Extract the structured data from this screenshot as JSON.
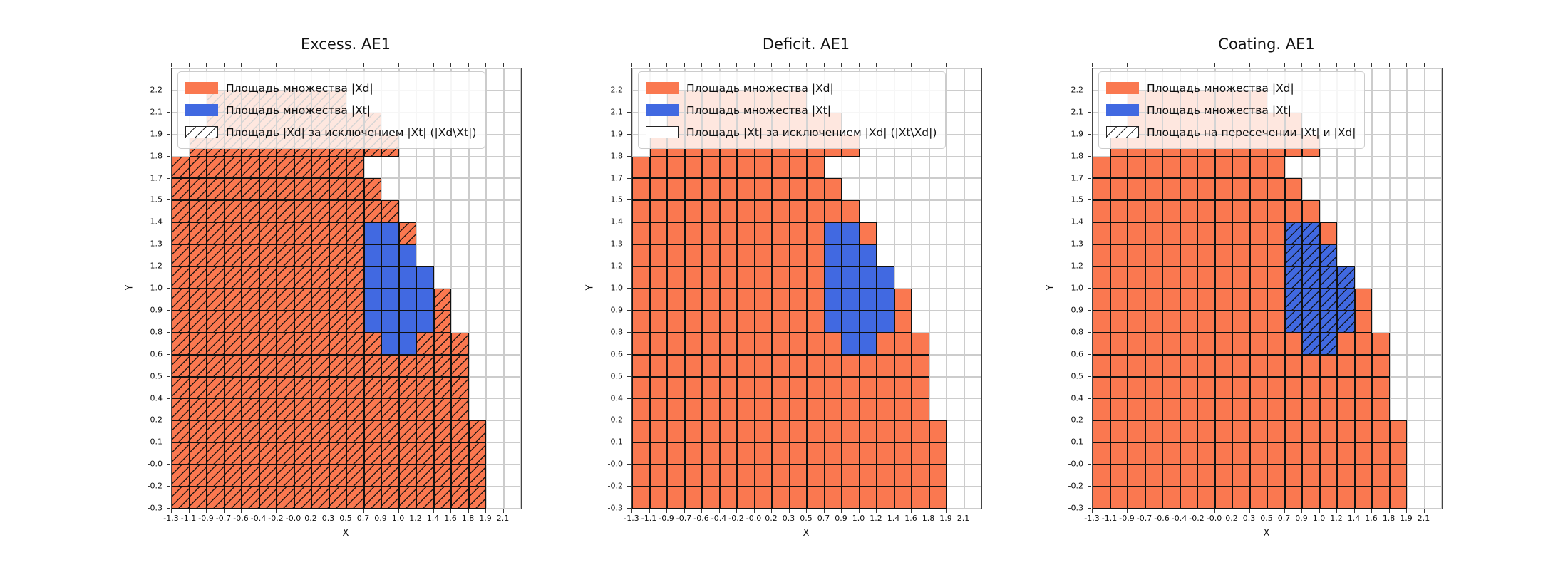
{
  "figure": {
    "background": "#ffffff"
  },
  "colors": {
    "orange": "#fa7850",
    "blue": "#4169e1",
    "grid_minor": "#cccccc",
    "cell_edge": "#111111",
    "spine": "#444444"
  },
  "chart_data": {
    "type": "heatmap",
    "shared": {
      "xlabel": "X",
      "ylabel": "Y",
      "x_ticks": [
        "-1.3",
        "-1.1",
        "-0.9",
        "-0.7",
        "-0.6",
        "-0.4",
        "-0.2",
        "-0.0",
        "0.2",
        "0.3",
        "0.5",
        "0.7",
        "0.9",
        "1.0",
        "1.2",
        "1.4",
        "1.6",
        "1.8",
        "1.9",
        "2.1"
      ],
      "y_ticks_top_to_bottom": [
        "2.2",
        "2.1",
        "1.9",
        "1.8",
        "1.7",
        "1.5",
        "1.4",
        "1.3",
        "1.2",
        "1.0",
        "0.9",
        "0.8",
        "0.6",
        "0.5",
        "0.4",
        "0.2",
        "0.1",
        "-0.0",
        "-0.2",
        "-0.3"
      ],
      "grid_legend_note": "rows are top-to-bottom, 20 chars: . empty, o orange |Xd|, b blue |Xt|",
      "grid_rows": [
        "....................",
        "..oooooooo..........",
        "..oooooooooo........",
        ".oooooooooooo.......",
        "ooooooooooo.........",
        "oooooooooooo........",
        "ooooooooooooo.......",
        "ooooooooooobbo......",
        "ooooooooooobbb......",
        "ooooooooooobbbb.....",
        "ooooooooooobbbbo....",
        "ooooooooooobbbbo....",
        "oooooooooooobbooo...",
        "ooooooooooooooooo...",
        "ooooooooooooooooo...",
        "ooooooooooooooooo...",
        "oooooooooooooooooo..",
        "oooooooooooooooooo..",
        "oooooooooooooooooo..",
        "oooooooooooooooooo.."
      ]
    },
    "plots": [
      {
        "title": "Excess. AE1",
        "hatch_on": "orange",
        "legend": [
          {
            "swatch": "orange",
            "label": "Площадь множества |Xd|"
          },
          {
            "swatch": "blue",
            "label": "Площадь множества  |Xt|"
          },
          {
            "swatch": "hatch",
            "label": "Площадь |Xd| за исключением |Xt| (|Xd\\Xt|)"
          }
        ]
      },
      {
        "title": "Deficit. AE1",
        "hatch_on": "none",
        "legend": [
          {
            "swatch": "orange",
            "label": "Площадь множества |Xd|"
          },
          {
            "swatch": "blue",
            "label": "Площадь множества  |Xt|"
          },
          {
            "swatch": "plain",
            "label": "Площадь |Xt| за исключением |Xd| (|Xt\\Xd|)"
          }
        ]
      },
      {
        "title": "Coating. AE1",
        "hatch_on": "blue",
        "legend": [
          {
            "swatch": "orange",
            "label": "Площадь множества |Xd|"
          },
          {
            "swatch": "blue",
            "label": "Площадь множества  |Xt|"
          },
          {
            "swatch": "hatch",
            "label": "Площадь на пересечении |Xt| и |Xd|"
          }
        ]
      }
    ],
    "layout": {
      "legend_position": "upper left inside axes",
      "grid": true
    }
  }
}
